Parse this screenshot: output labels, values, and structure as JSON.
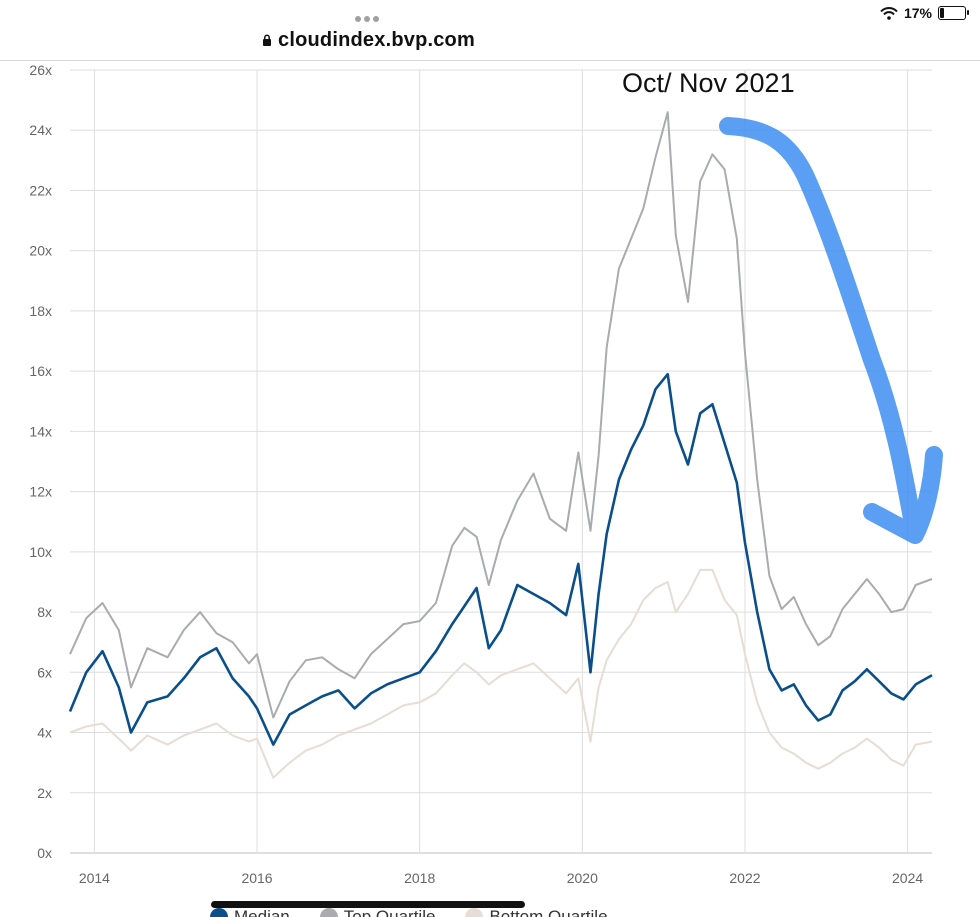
{
  "browser": {
    "url": "cloudindex.bvp.com",
    "battery": "17%",
    "battery_level": 0.17
  },
  "legend": [
    {
      "label": "Median",
      "color": "#0b4f8a"
    },
    {
      "label": "Top Quartile",
      "color": "#a9abae"
    },
    {
      "label": "Bottom Quartile",
      "color": "#e6ddd4"
    }
  ],
  "annotation": {
    "text": "Oct/ Nov 2021",
    "arrow_color": "#3d8ef2"
  },
  "chart_data": {
    "type": "line",
    "title": "",
    "xlabel": "",
    "ylabel": "",
    "xlim": [
      2013.7,
      2024.3
    ],
    "ylim": [
      0,
      26
    ],
    "x_ticks": [
      2014,
      2016,
      2018,
      2020,
      2022,
      2024
    ],
    "y_ticks": [
      0,
      2,
      4,
      6,
      8,
      10,
      12,
      14,
      16,
      18,
      20,
      22,
      24,
      26
    ],
    "y_tick_suffix": "x",
    "grid": true,
    "legend_position": "bottom",
    "series": [
      {
        "name": "Median",
        "color": "#0b4f8a",
        "x": [
          2013.7,
          2013.9,
          2014.1,
          2014.3,
          2014.45,
          2014.65,
          2014.9,
          2015.1,
          2015.3,
          2015.5,
          2015.7,
          2015.9,
          2016.0,
          2016.2,
          2016.4,
          2016.6,
          2016.8,
          2017.0,
          2017.2,
          2017.4,
          2017.6,
          2017.8,
          2018.0,
          2018.2,
          2018.4,
          2018.55,
          2018.7,
          2018.85,
          2019.0,
          2019.2,
          2019.4,
          2019.6,
          2019.8,
          2019.95,
          2020.1,
          2020.2,
          2020.3,
          2020.45,
          2020.6,
          2020.75,
          2020.9,
          2021.05,
          2021.15,
          2021.3,
          2021.45,
          2021.6,
          2021.75,
          2021.9,
          2022.0,
          2022.15,
          2022.3,
          2022.45,
          2022.6,
          2022.75,
          2022.9,
          2023.05,
          2023.2,
          2023.35,
          2023.5,
          2023.65,
          2023.8,
          2023.95,
          2024.1,
          2024.3
        ],
        "values": [
          4.7,
          6.0,
          6.7,
          5.5,
          4.0,
          5.0,
          5.2,
          5.8,
          6.5,
          6.8,
          5.8,
          5.2,
          4.8,
          3.6,
          4.6,
          4.9,
          5.2,
          5.4,
          4.8,
          5.3,
          5.6,
          5.8,
          6.0,
          6.7,
          7.6,
          8.2,
          8.8,
          6.8,
          7.4,
          8.9,
          8.6,
          8.3,
          7.9,
          9.6,
          6.0,
          8.6,
          10.6,
          12.4,
          13.4,
          14.2,
          15.4,
          15.9,
          14.0,
          12.9,
          14.6,
          14.9,
          13.6,
          12.3,
          10.3,
          8.0,
          6.1,
          5.4,
          5.6,
          4.9,
          4.4,
          4.6,
          5.4,
          5.7,
          6.1,
          5.7,
          5.3,
          5.1,
          5.6,
          5.9
        ]
      },
      {
        "name": "Top Quartile",
        "color": "#a9abae",
        "x": [
          2013.7,
          2013.9,
          2014.1,
          2014.3,
          2014.45,
          2014.65,
          2014.9,
          2015.1,
          2015.3,
          2015.5,
          2015.7,
          2015.9,
          2016.0,
          2016.2,
          2016.4,
          2016.6,
          2016.8,
          2017.0,
          2017.2,
          2017.4,
          2017.6,
          2017.8,
          2018.0,
          2018.2,
          2018.4,
          2018.55,
          2018.7,
          2018.85,
          2019.0,
          2019.2,
          2019.4,
          2019.6,
          2019.8,
          2019.95,
          2020.1,
          2020.2,
          2020.3,
          2020.45,
          2020.6,
          2020.75,
          2020.9,
          2021.05,
          2021.15,
          2021.3,
          2021.45,
          2021.6,
          2021.75,
          2021.9,
          2022.0,
          2022.15,
          2022.3,
          2022.45,
          2022.6,
          2022.75,
          2022.9,
          2023.05,
          2023.2,
          2023.35,
          2023.5,
          2023.65,
          2023.8,
          2023.95,
          2024.1,
          2024.3
        ],
        "values": [
          6.6,
          7.8,
          8.3,
          7.4,
          5.5,
          6.8,
          6.5,
          7.4,
          8.0,
          7.3,
          7.0,
          6.3,
          6.6,
          4.5,
          5.7,
          6.4,
          6.5,
          6.1,
          5.8,
          6.6,
          7.1,
          7.6,
          7.7,
          8.3,
          10.2,
          10.8,
          10.5,
          8.9,
          10.4,
          11.7,
          12.6,
          11.1,
          10.7,
          13.3,
          10.7,
          13.2,
          16.8,
          19.4,
          20.4,
          21.4,
          23.1,
          24.6,
          20.5,
          18.3,
          22.3,
          23.2,
          22.7,
          20.4,
          16.6,
          12.4,
          9.2,
          8.1,
          8.5,
          7.6,
          6.9,
          7.2,
          8.1,
          8.6,
          9.1,
          8.6,
          8.0,
          8.1,
          8.9,
          9.1
        ]
      },
      {
        "name": "Bottom Quartile",
        "color": "#e6ddd4",
        "x": [
          2013.7,
          2013.9,
          2014.1,
          2014.3,
          2014.45,
          2014.65,
          2014.9,
          2015.1,
          2015.3,
          2015.5,
          2015.7,
          2015.9,
          2016.0,
          2016.2,
          2016.4,
          2016.6,
          2016.8,
          2017.0,
          2017.2,
          2017.4,
          2017.6,
          2017.8,
          2018.0,
          2018.2,
          2018.4,
          2018.55,
          2018.7,
          2018.85,
          2019.0,
          2019.2,
          2019.4,
          2019.6,
          2019.8,
          2019.95,
          2020.1,
          2020.2,
          2020.3,
          2020.45,
          2020.6,
          2020.75,
          2020.9,
          2021.05,
          2021.15,
          2021.3,
          2021.45,
          2021.6,
          2021.75,
          2021.9,
          2022.0,
          2022.15,
          2022.3,
          2022.45,
          2022.6,
          2022.75,
          2022.9,
          2023.05,
          2023.2,
          2023.35,
          2023.5,
          2023.65,
          2023.8,
          2023.95,
          2024.1,
          2024.3
        ],
        "values": [
          4.0,
          4.2,
          4.3,
          3.8,
          3.4,
          3.9,
          3.6,
          3.9,
          4.1,
          4.3,
          3.9,
          3.7,
          3.8,
          2.5,
          3.0,
          3.4,
          3.6,
          3.9,
          4.1,
          4.3,
          4.6,
          4.9,
          5.0,
          5.3,
          5.9,
          6.3,
          6.0,
          5.6,
          5.9,
          6.1,
          6.3,
          5.8,
          5.3,
          5.8,
          3.7,
          5.5,
          6.4,
          7.1,
          7.6,
          8.4,
          8.8,
          9.0,
          8.0,
          8.6,
          9.4,
          9.4,
          8.4,
          7.9,
          6.6,
          5.0,
          4.0,
          3.5,
          3.3,
          3.0,
          2.8,
          3.0,
          3.3,
          3.5,
          3.8,
          3.5,
          3.1,
          2.9,
          3.6,
          3.7
        ]
      }
    ]
  }
}
